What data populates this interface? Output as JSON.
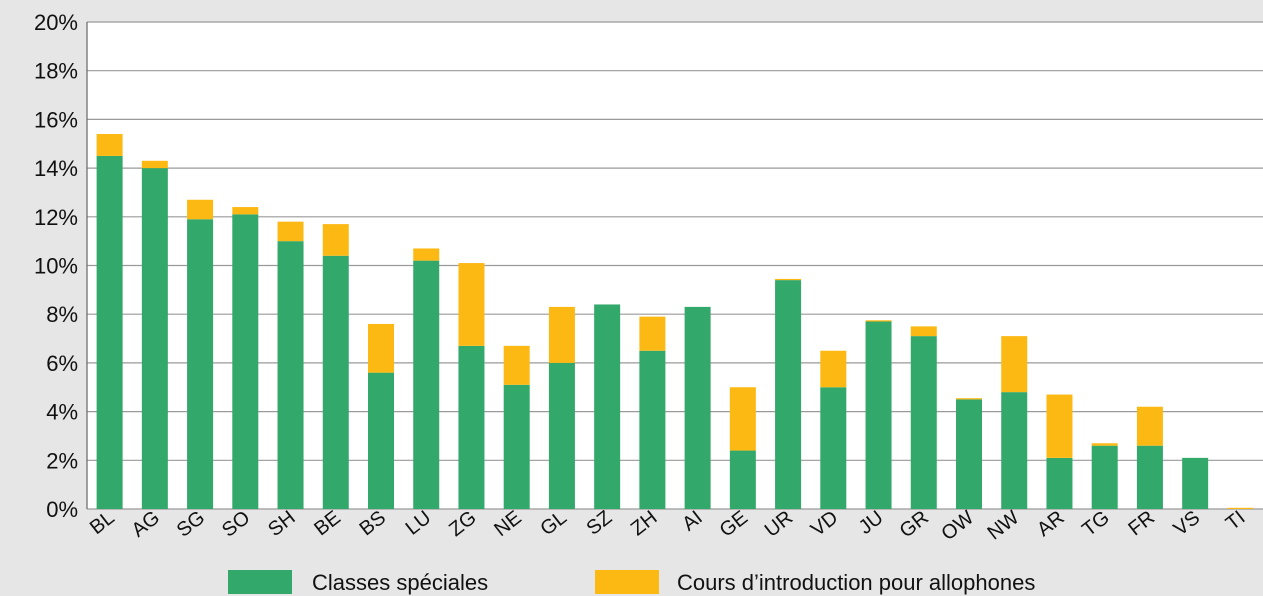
{
  "chart_data": {
    "type": "bar",
    "stacked": true,
    "categories": [
      "BL",
      "AG",
      "SG",
      "SO",
      "SH",
      "BE",
      "BS",
      "LU",
      "ZG",
      "NE",
      "GL",
      "SZ",
      "ZH",
      "AI",
      "GE",
      "UR",
      "VD",
      "JU",
      "GR",
      "OW",
      "NW",
      "AR",
      "TG",
      "FR",
      "VS",
      "TI"
    ],
    "series": [
      {
        "name": "Classes spéciales",
        "color": "#33a86b",
        "values": [
          14.5,
          14.0,
          11.9,
          12.1,
          11.0,
          10.4,
          5.6,
          10.2,
          6.7,
          5.1,
          6.0,
          8.4,
          6.5,
          8.3,
          2.4,
          9.4,
          5.0,
          7.7,
          7.1,
          4.5,
          4.8,
          2.1,
          2.6,
          2.6,
          2.1,
          0.0
        ]
      },
      {
        "name": "Cours d’introduction pour allophones",
        "color": "#fdb913",
        "values": [
          0.9,
          0.3,
          0.8,
          0.3,
          0.8,
          1.3,
          2.0,
          0.5,
          3.4,
          1.6,
          2.3,
          0.0,
          1.4,
          0.0,
          2.6,
          0.05,
          1.5,
          0.05,
          0.4,
          0.05,
          2.3,
          2.6,
          0.1,
          1.6,
          0.0,
          0.05
        ]
      }
    ],
    "yticks": [
      "0%",
      "2%",
      "4%",
      "6%",
      "8%",
      "10%",
      "12%",
      "14%",
      "16%",
      "18%",
      "20%"
    ],
    "ylim": [
      0,
      20
    ],
    "grid": true,
    "legend": "bottom-center",
    "title": "",
    "xlabel": "",
    "ylabel": ""
  }
}
